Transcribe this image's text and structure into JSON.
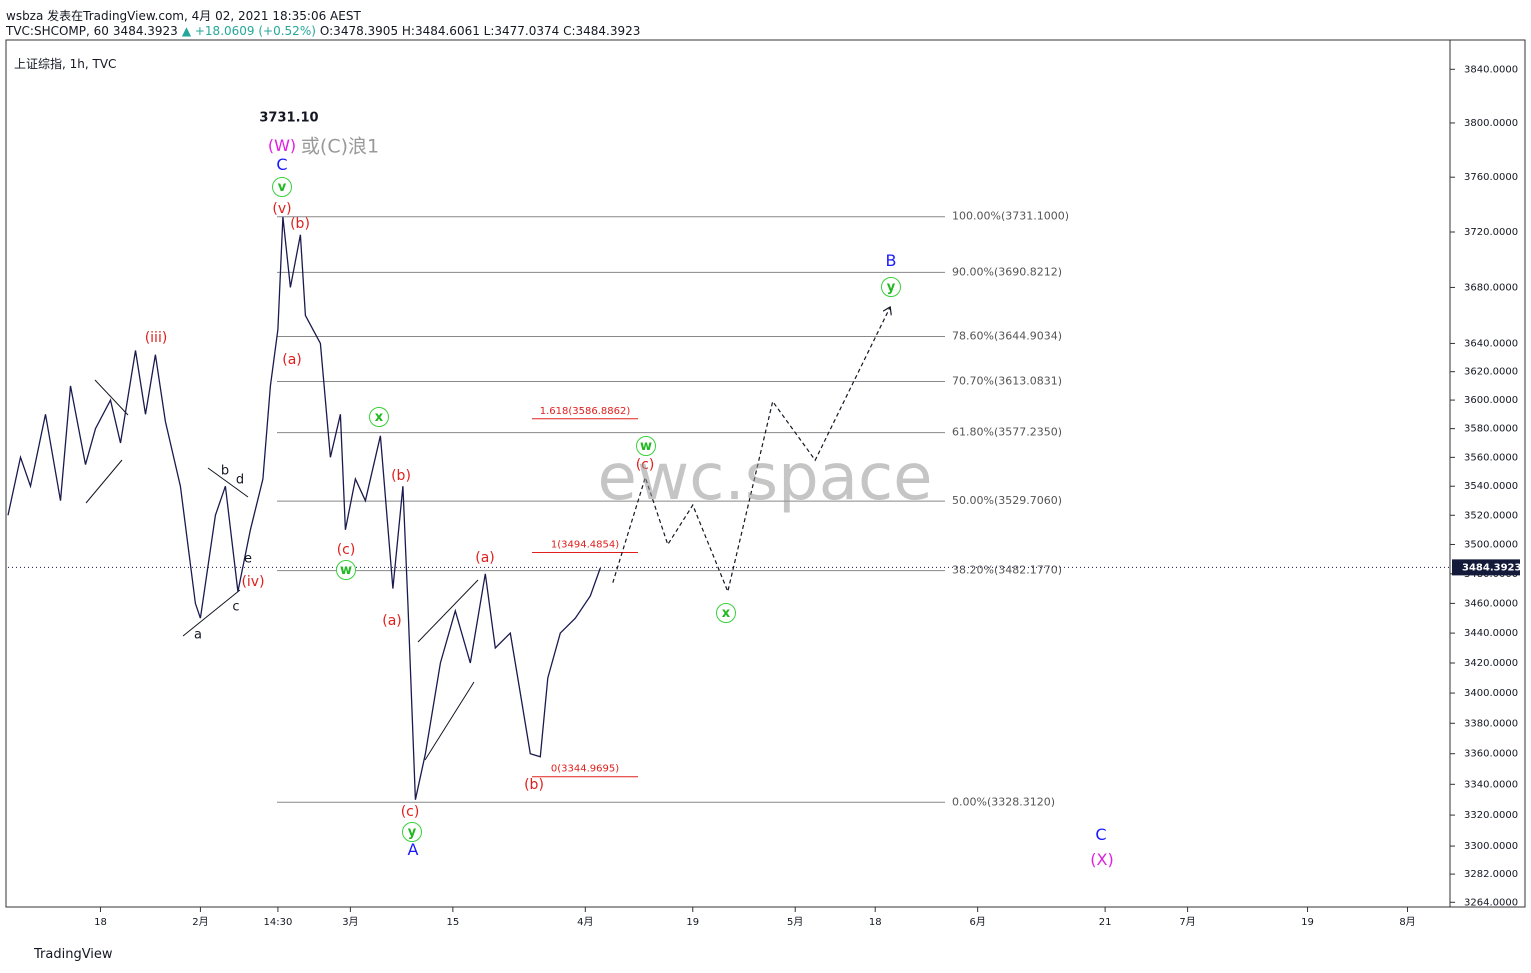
{
  "header": {
    "line1": "wsbza 发表在TradingView.com, 4月 02, 2021 18:35:06 AEST",
    "symbol": "TVC:SHCOMP, 60",
    "price": "3484.3923",
    "change": "▲ +18.0609 (+0.52%)",
    "ohlc": "O:3478.3905 H:3484.6061 L:3477.0374 C:3484.3923",
    "chart_label": "上证综指, 1h, TVC",
    "footer": "TradingView"
  },
  "chart_data": {
    "type": "line",
    "log_scale": true,
    "ylim": [
      3261,
      3862
    ],
    "yticks": [
      {
        "value": 3840,
        "label": "3840.0000"
      },
      {
        "value": 3800,
        "label": "3800.0000"
      },
      {
        "value": 3760,
        "label": "3760.0000"
      },
      {
        "value": 3720,
        "label": "3720.0000"
      },
      {
        "value": 3680,
        "label": "3680.0000"
      },
      {
        "value": 3640,
        "label": "3640.0000"
      },
      {
        "value": 3620,
        "label": "3620.0000"
      },
      {
        "value": 3600,
        "label": "3600.0000"
      },
      {
        "value": 3580,
        "label": "3580.0000"
      },
      {
        "value": 3560,
        "label": "3560.0000"
      },
      {
        "value": 3540,
        "label": "3540.0000"
      },
      {
        "value": 3520,
        "label": "3520.0000"
      },
      {
        "value": 3500,
        "label": "3500.0000"
      },
      {
        "value": 3480,
        "label": "3480.0000"
      },
      {
        "value": 3460,
        "label": "3460.0000"
      },
      {
        "value": 3440,
        "label": "3440.0000"
      },
      {
        "value": 3420,
        "label": "3420.0000"
      },
      {
        "value": 3400,
        "label": "3400.0000"
      },
      {
        "value": 3380,
        "label": "3380.0000"
      },
      {
        "value": 3360,
        "label": "3360.0000"
      },
      {
        "value": 3340,
        "label": "3340.0000"
      },
      {
        "value": 3320,
        "label": "3320.0000"
      },
      {
        "value": 3300,
        "label": "3300.0000"
      },
      {
        "value": 3282,
        "label": "3282.0000"
      },
      {
        "value": 3264,
        "label": "3264.0000"
      }
    ],
    "xlim": [
      0,
      577
    ],
    "xticks": [
      {
        "value": 37,
        "label": "18"
      },
      {
        "value": 77,
        "label": "2月"
      },
      {
        "value": 108,
        "label": "14:30"
      },
      {
        "value": 137,
        "label": "3月"
      },
      {
        "value": 178,
        "label": "15"
      },
      {
        "value": 231,
        "label": "4月"
      },
      {
        "value": 274,
        "label": "19"
      },
      {
        "value": 315,
        "label": "5月"
      },
      {
        "value": 347,
        "label": "18"
      },
      {
        "value": 388,
        "label": "6月"
      },
      {
        "value": 439,
        "label": "21"
      },
      {
        "value": 472,
        "label": "7月"
      },
      {
        "value": 520,
        "label": "19"
      },
      {
        "value": 560,
        "label": "8月"
      }
    ],
    "series": [
      {
        "color": "#1a1a4e",
        "x": [
          0,
          5,
          9,
          15,
          21,
          25,
          31,
          35,
          41,
          45,
          51,
          55,
          59,
          63,
          69,
          75,
          77,
          83,
          87,
          92,
          97,
          102,
          105,
          108,
          110,
          113,
          117,
          119,
          122,
          125,
          129,
          133,
          135,
          139,
          143,
          149,
          154,
          158,
          160,
          163,
          167,
          173,
          179,
          185,
          191,
          195,
          201,
          205,
          209,
          213,
          216,
          221,
          227,
          233,
          237
        ],
        "values": [
          3520,
          3560,
          3540,
          3590,
          3530,
          3610,
          3555,
          3580,
          3600,
          3570,
          3635,
          3590,
          3632,
          3585,
          3540,
          3460,
          3450,
          3520,
          3540,
          3468,
          3510,
          3545,
          3610,
          3650,
          3731,
          3680,
          3718,
          3660,
          3650,
          3640,
          3560,
          3590,
          3510,
          3545,
          3530,
          3575,
          3470,
          3540,
          3460,
          3330,
          3360,
          3420,
          3455,
          3420,
          3480,
          3430,
          3440,
          3400,
          3360,
          3358,
          3410,
          3440,
          3450,
          3465,
          3484
        ]
      },
      {
        "color": "#131722",
        "dashed": true,
        "x": [
          242,
          255,
          264,
          274,
          288,
          306,
          323,
          353
        ],
        "values": [
          3474,
          3546,
          3500,
          3527,
          3468,
          3599,
          3558,
          3666
        ]
      }
    ],
    "levels": [
      {
        "value": 3731.1,
        "label": "100.00%(3731.1000)"
      },
      {
        "value": 3690.8212,
        "label": "90.00%(3690.8212)"
      },
      {
        "value": 3644.9034,
        "label": "78.60%(3644.9034)"
      },
      {
        "value": 3613.0831,
        "label": "70.70%(3613.0831)"
      },
      {
        "value": 3577.235,
        "label": "61.80%(3577.2350)"
      },
      {
        "value": 3529.706,
        "label": "50.00%(3529.7060)"
      },
      {
        "value": 3482.177,
        "label": "38.20%(3482.1770)"
      },
      {
        "value": 3328.312,
        "label": "0.00%(3328.3120)"
      }
    ],
    "targets": [
      {
        "value": 3586.8862,
        "label": "1.618(3586.8862)"
      },
      {
        "value": 3494.4854,
        "label": "1(3494.4854)"
      },
      {
        "value": 3344.9695,
        "label": "0(3344.9695)"
      }
    ],
    "last_price": 3484.3923,
    "annotations": [
      "3731.10",
      "(W)",
      "或(C)浪1",
      "C",
      "v",
      "(v)",
      "(b)",
      "(iii)",
      "(a)",
      "x",
      "(b)",
      "(c)",
      "w",
      "(a)",
      "(a)",
      "(c)",
      "y",
      "A",
      "(b)",
      "w",
      "(c)",
      "x",
      "B",
      "y",
      "C",
      "(X)",
      "(iv)",
      "b",
      "d",
      "e",
      "c",
      "a",
      "ewc.space"
    ]
  }
}
